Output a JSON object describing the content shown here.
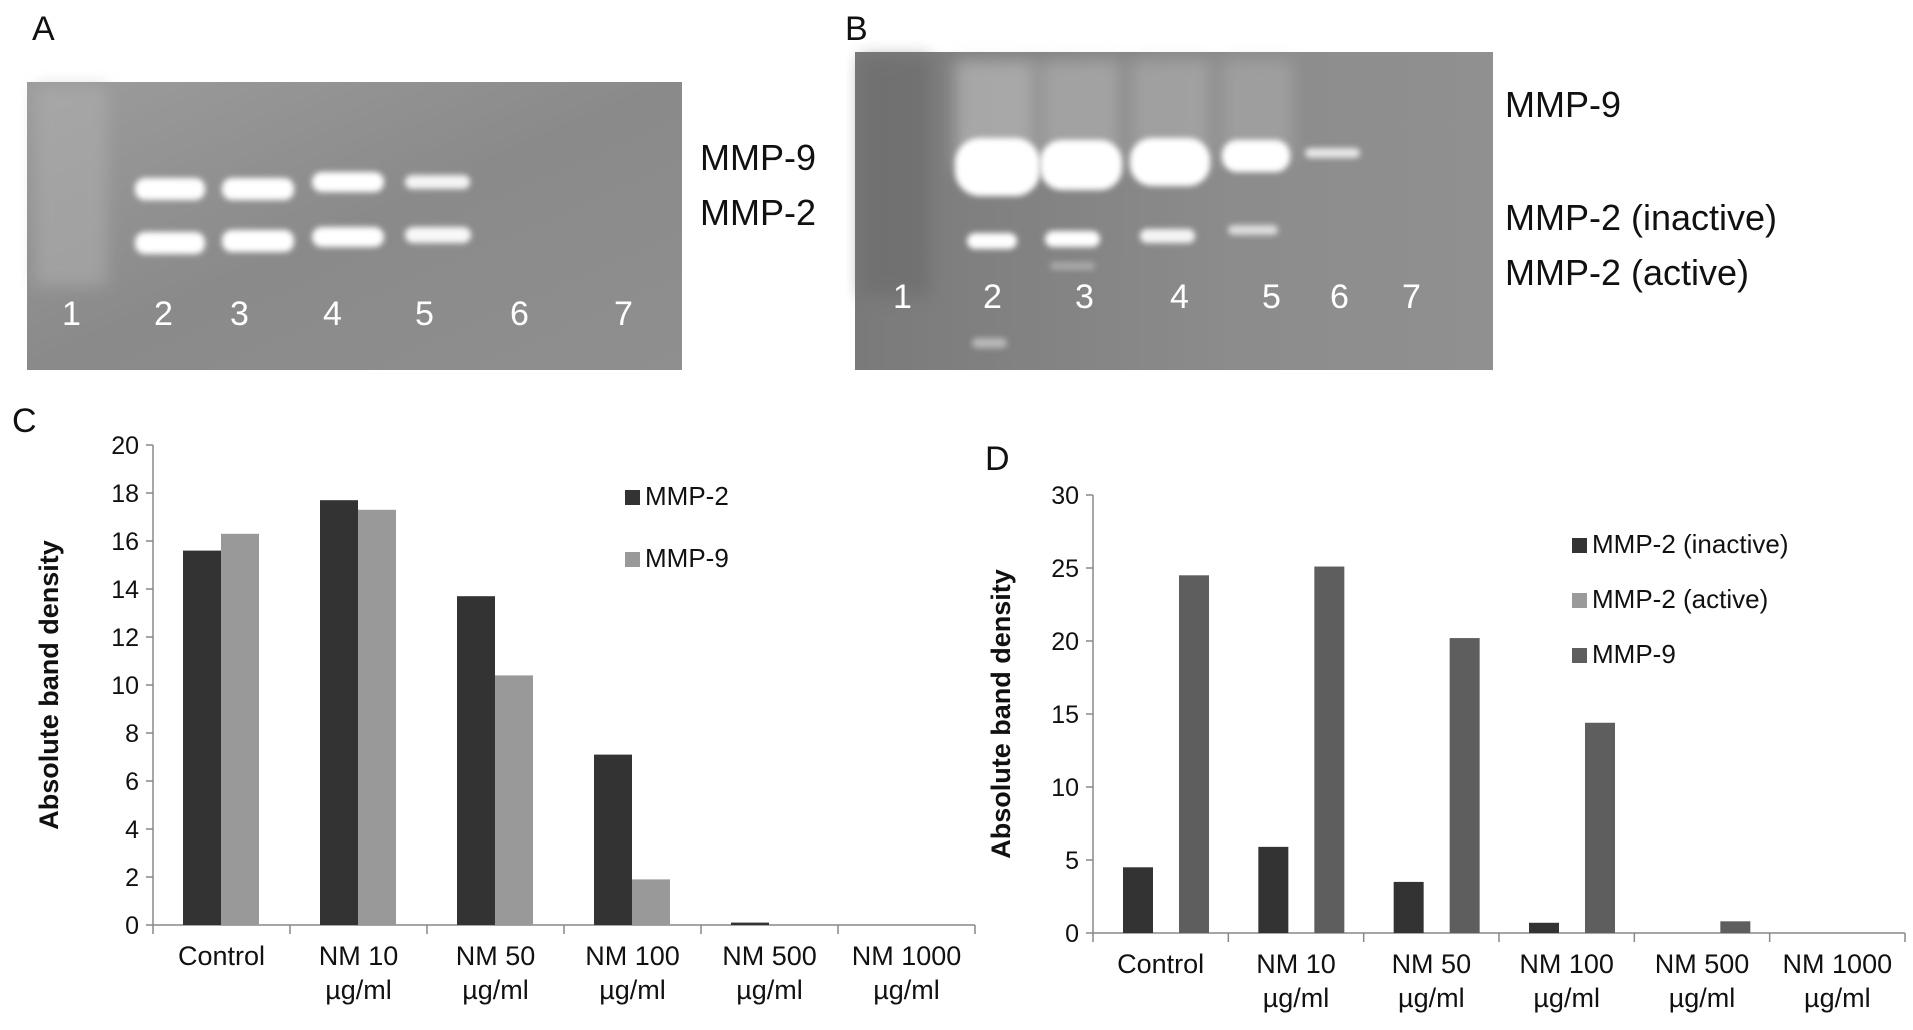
{
  "panels": {
    "a": "A",
    "b": "B",
    "c": "C",
    "d": "D"
  },
  "gel_a": {
    "lanes": [
      "1",
      "2",
      "3",
      "4",
      "5",
      "6",
      "7"
    ],
    "band_labels": [
      "MMP-9",
      "MMP-2"
    ]
  },
  "gel_b": {
    "lanes": [
      "1",
      "2",
      "3",
      "4",
      "5",
      "6",
      "7"
    ],
    "band_labels": [
      "MMP-9",
      "MMP-2 (inactive)",
      "MMP-2 (active)"
    ]
  },
  "chart_data": [
    {
      "type": "bar",
      "panel": "C",
      "title": "",
      "xlabel": "",
      "ylabel": "Absolute band density",
      "ylim": [
        0,
        20
      ],
      "ytick_step": 2,
      "categories": [
        [
          "Control"
        ],
        [
          "NM 10",
          "µg/ml"
        ],
        [
          "NM 50",
          "µg/ml"
        ],
        [
          "NM 100",
          "µg/ml"
        ],
        [
          "NM 500",
          "µg/ml"
        ],
        [
          "NM 1000",
          "µg/ml"
        ]
      ],
      "series": [
        {
          "name": "MMP-2",
          "color": "#333333",
          "values": [
            15.6,
            17.7,
            13.7,
            7.1,
            0.1,
            0
          ]
        },
        {
          "name": "MMP-9",
          "color": "#999999",
          "values": [
            16.3,
            17.3,
            10.4,
            1.9,
            0,
            0
          ]
        }
      ],
      "grid": false,
      "legend": "top-right"
    },
    {
      "type": "bar",
      "panel": "D",
      "title": "",
      "xlabel": "",
      "ylabel": "Absolute band density",
      "ylim": [
        0,
        30
      ],
      "ytick_step": 5,
      "categories": [
        [
          "Control"
        ],
        [
          "NM 10",
          "µg/ml"
        ],
        [
          "NM 50",
          "µg/ml"
        ],
        [
          "NM 100",
          "µg/ml"
        ],
        [
          "NM 500",
          "µg/ml"
        ],
        [
          "NM 1000",
          "µg/ml"
        ]
      ],
      "series": [
        {
          "name": "MMP-2 (inactive)",
          "color": "#333333",
          "values": [
            4.5,
            5.9,
            3.5,
            0.7,
            0,
            0
          ]
        },
        {
          "name": "MMP-2 (active)",
          "color": "#9a9a9a",
          "values": [
            0,
            0,
            0,
            0,
            0,
            0
          ]
        },
        {
          "name": "MMP-9",
          "color": "#5e5e5e",
          "values": [
            24.5,
            25.1,
            20.2,
            14.4,
            0.8,
            0
          ]
        }
      ],
      "grid": false,
      "legend": "top-right"
    }
  ]
}
